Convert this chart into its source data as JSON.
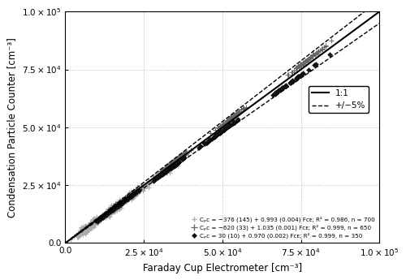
{
  "xlim": [
    0,
    100000
  ],
  "ylim": [
    0,
    100000
  ],
  "xlabel": "Faraday Cup Electrometer [cm⁻³]",
  "ylabel": "Condensation Particle Counter [cm⁻³]",
  "xticks": [
    0,
    25000,
    50000,
    75000,
    100000
  ],
  "yticks": [
    0,
    25000,
    50000,
    75000,
    100000
  ],
  "series": [
    {
      "label": "Cₚᴄ = −376 (145) + 0.993 (0.004) Fᴄᴇ; R² = 0.986, n = 700",
      "marker": "+",
      "color": "#aaaaaa",
      "markersize": 4,
      "intercept": -376,
      "slope": 0.993,
      "n": 700,
      "seed": 42,
      "noise": 800,
      "x_center": 15000,
      "x_scale": 12000
    },
    {
      "label": "Cₚᴄ = −620 (33) + 1.035 (0.001) Fᴄᴇ; R² = 0.999, n = 650",
      "marker": "+",
      "color": "#666666",
      "markersize": 5,
      "intercept": -620,
      "slope": 1.035,
      "n": 650,
      "seed": 123,
      "noise": 300,
      "x_center": 35000,
      "x_scale": 15000
    },
    {
      "label": "Cₚᴄ = 30 (10) + 0.970 (0.002) Fᴄᴇ; R² = 0.999, n = 350",
      "marker": "D",
      "color": "#111111",
      "markersize": 3,
      "intercept": 30,
      "slope": 0.97,
      "n": 350,
      "seed": 7,
      "noise": 200,
      "x_center": 33000,
      "x_scale": 20000
    }
  ],
  "grid_color": "#bbbbbb",
  "grid_linestyle": ":"
}
